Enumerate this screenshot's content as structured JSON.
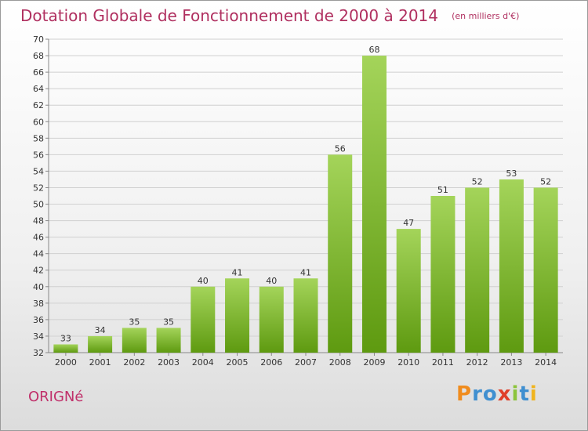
{
  "header": {
    "title": "Dotation Globale de Fonctionnement de 2000 à 2014",
    "unit": "(en milliers d'€)"
  },
  "footer": {
    "commune": "ORIGNé",
    "logo_text": "Proxiti"
  },
  "colors": {
    "title": "#b03060",
    "bar_light": "#a4d45a",
    "bar_dark": "#5e9a10",
    "axis": "#888888",
    "grid": "#d0d0d0"
  },
  "chart_data": {
    "type": "bar",
    "title": "Dotation Globale de Fonctionnement de 2000 à 2014",
    "xlabel": "",
    "ylabel": "",
    "categories": [
      "2000",
      "2001",
      "2002",
      "2003",
      "2004",
      "2005",
      "2006",
      "2007",
      "2008",
      "2009",
      "2010",
      "2011",
      "2012",
      "2013",
      "2014"
    ],
    "values": [
      33,
      34,
      35,
      35,
      40,
      41,
      40,
      41,
      56,
      68,
      47,
      51,
      52,
      53,
      52
    ],
    "ylim": [
      32,
      70
    ],
    "ytick_step": 2,
    "grid": true,
    "legend": "none"
  }
}
